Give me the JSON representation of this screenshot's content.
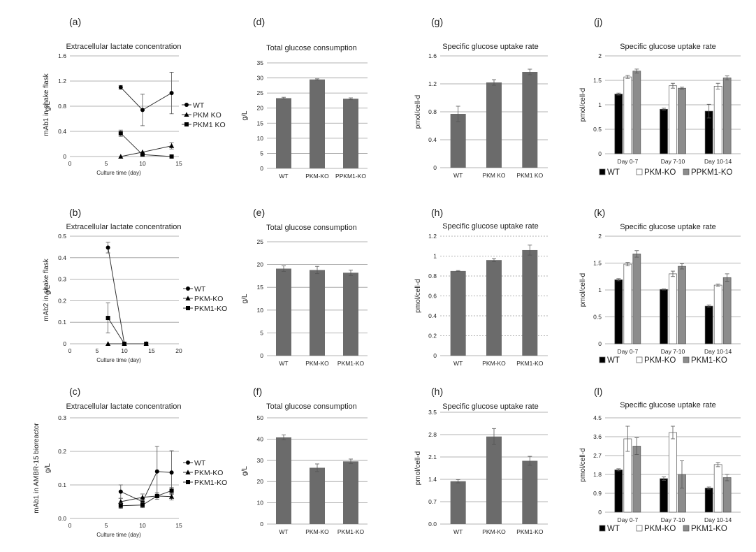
{
  "chart_data": [
    {
      "id": "a",
      "panel_label": "(a)",
      "type": "scatter",
      "row_label": "mAb1 in shake flask",
      "title": "Extracellular lactate concentration",
      "xlabel": "Culture time (day)",
      "ylabel": "g/L",
      "xlim": [
        0,
        15
      ],
      "xticks": [
        "0",
        "5",
        "10",
        "15"
      ],
      "ylim": [
        0,
        1.6
      ],
      "yticks": [
        "0",
        "0.4",
        "0.8",
        "1.2",
        "1.6"
      ],
      "grid": true,
      "legend_position": "right",
      "series": [
        {
          "name": "WT",
          "marker": "circle",
          "x": [
            7,
            10,
            14
          ],
          "y": [
            1.1,
            0.74,
            1.01
          ],
          "err": [
            0.03,
            0.25,
            0.33
          ]
        },
        {
          "name": "PKM KO",
          "marker": "triangle",
          "x": [
            7,
            10,
            14
          ],
          "y": [
            0.0,
            0.07,
            0.17
          ],
          "err": [
            0,
            0,
            0.05
          ]
        },
        {
          "name": "PKM1 KO",
          "marker": "square",
          "x": [
            7,
            10,
            14
          ],
          "y": [
            0.37,
            0.03,
            0.0
          ],
          "err": [
            0.05,
            0,
            0
          ]
        }
      ]
    },
    {
      "id": "b",
      "panel_label": "(b)",
      "type": "scatter",
      "row_label": "mAb2 in shake flask",
      "title": "Extracellular lactate concentration",
      "xlabel": "Culture time (day)",
      "ylabel": "g/L",
      "xlim": [
        0,
        20
      ],
      "xticks": [
        "0",
        "5",
        "10",
        "15",
        "20"
      ],
      "ylim": [
        0,
        0.5
      ],
      "yticks": [
        "0",
        "0.1",
        "0.2",
        "0.3",
        "0.4",
        "0.5"
      ],
      "grid": true,
      "legend_position": "right",
      "series": [
        {
          "name": "WT",
          "marker": "circle",
          "x": [
            7,
            10
          ],
          "y": [
            0.447,
            0.0
          ],
          "err": [
            0.025,
            0
          ]
        },
        {
          "name": "PKM-KO",
          "marker": "triangle",
          "x": [
            7,
            10,
            14
          ],
          "y": [
            0.0,
            0.0,
            0.0
          ],
          "err": [
            0,
            0,
            0
          ]
        },
        {
          "name": "PKM1-KO",
          "marker": "square",
          "x": [
            7,
            10,
            14
          ],
          "y": [
            0.12,
            0.0,
            0.0
          ],
          "err": [
            0.07,
            0,
            0
          ]
        }
      ]
    },
    {
      "id": "c",
      "panel_label": "(c)",
      "type": "scatter",
      "row_label": "mAb1 in AMBR-15 bioreactor",
      "title": "Extracellular lactate concentration",
      "xlabel": "Culture time (day)",
      "ylabel": "g/L",
      "xlim": [
        0,
        15
      ],
      "xticks": [
        "0",
        "5",
        "10",
        "15"
      ],
      "ylim": [
        0,
        0.3
      ],
      "yticks": [
        "0.0",
        "0.1",
        "0.2",
        "0.3"
      ],
      "grid": true,
      "legend_position": "right",
      "series": [
        {
          "name": "WT",
          "marker": "circle",
          "x": [
            7,
            10,
            12,
            14
          ],
          "y": [
            0.08,
            0.05,
            0.14,
            0.137
          ],
          "err": [
            0.02,
            0.01,
            0.075,
            0.065
          ]
        },
        {
          "name": "PKM-KO",
          "marker": "triangle",
          "x": [
            7,
            10,
            12,
            14
          ],
          "y": [
            0.05,
            0.063,
            0.067,
            0.065
          ],
          "err": [
            0.01,
            0.01,
            0.01,
            0.01
          ]
        },
        {
          "name": "PKM1-KO",
          "marker": "square",
          "x": [
            7,
            10,
            12,
            14
          ],
          "y": [
            0.038,
            0.04,
            0.067,
            0.083
          ],
          "err": [
            0.008,
            0.008,
            0.005,
            0.01
          ]
        }
      ]
    },
    {
      "id": "d",
      "panel_label": "(d)",
      "type": "bar",
      "title": "Total glucose consumption",
      "ylabel": "g/L",
      "categories": [
        "WT",
        "PKM-KO",
        "PPKM1-KO"
      ],
      "values": [
        23.3,
        29.5,
        23.1
      ],
      "err": [
        0.3,
        0.2,
        0.3
      ],
      "ylim": [
        0,
        35
      ],
      "yticks": [
        "0",
        "5",
        "10",
        "15",
        "20",
        "25",
        "30",
        "35"
      ],
      "grid": true,
      "color": "#6b6b6b"
    },
    {
      "id": "e",
      "panel_label": "(e)",
      "type": "bar",
      "title": "Total glucose consumption",
      "ylabel": "g/L",
      "categories": [
        "WT",
        "PKM-KO",
        "PKM1-KO"
      ],
      "values": [
        19.1,
        18.8,
        18.2
      ],
      "err": [
        0.6,
        0.8,
        0.6
      ],
      "ylim": [
        0,
        25
      ],
      "yticks": [
        "0",
        "5",
        "10",
        "15",
        "20",
        "25"
      ],
      "grid": true,
      "color": "#6b6b6b"
    },
    {
      "id": "f",
      "panel_label": "(f)",
      "type": "bar",
      "title": "Total glucose consumption",
      "ylabel": "g/L",
      "categories": [
        "WT",
        "PKM-KO",
        "PKM1-KO"
      ],
      "values": [
        40.8,
        26.5,
        29.5
      ],
      "err": [
        1.2,
        1.8,
        1.1
      ],
      "ylim": [
        0,
        50
      ],
      "yticks": [
        "0",
        "10",
        "20",
        "30",
        "40",
        "50"
      ],
      "grid": true,
      "color": "#6b6b6b"
    },
    {
      "id": "g",
      "panel_label": "(g)",
      "type": "bar",
      "title": "Specific glucose uptake rate",
      "ylabel": "pmol/cell-d",
      "categories": [
        "WT",
        "PKM KO",
        "PKM1 KO"
      ],
      "values": [
        0.77,
        1.22,
        1.37
      ],
      "err": [
        0.11,
        0.04,
        0.04
      ],
      "ylim": [
        0,
        1.6
      ],
      "yticks": [
        "0",
        "0.4",
        "0.8",
        "1.2",
        "1.6"
      ],
      "grid": true,
      "color": "#6b6b6b"
    },
    {
      "id": "h1",
      "panel_label": "(h)",
      "type": "bar",
      "title": "Specific glucose uptake rate",
      "ylabel": "pmol/cell-d",
      "categories": [
        "WT",
        "PKM-KO",
        "PKM1-KO"
      ],
      "values": [
        0.85,
        0.96,
        1.06
      ],
      "err": [
        0.005,
        0.015,
        0.05
      ],
      "ylim": [
        0,
        1.2
      ],
      "yticks": [
        "0",
        "0.2",
        "0.4",
        "0.6",
        "0.8",
        "1",
        "1.2"
      ],
      "grid": true,
      "grid_style": "dashed",
      "color": "#6b6b6b"
    },
    {
      "id": "h2",
      "panel_label": "(h)",
      "type": "bar",
      "title": "Specific glucose uptake rate",
      "ylabel": "pmol/cell-d",
      "categories": [
        "WT",
        "PKM-KO",
        "PKM1-KO"
      ],
      "values": [
        1.34,
        2.74,
        1.98
      ],
      "err": [
        0.05,
        0.25,
        0.14
      ],
      "ylim": [
        0,
        3.5
      ],
      "yticks": [
        "0.0",
        "0.7",
        "1.4",
        "2.1",
        "2.8",
        "3.5"
      ],
      "grid": true,
      "color": "#6b6b6b"
    },
    {
      "id": "j",
      "panel_label": "(j)",
      "type": "bar",
      "title": "Specific glucose uptake rate",
      "ylabel": "pmol/cell-d",
      "categories": [
        "Day 0-7",
        "Day 7-10",
        "Day 10-14"
      ],
      "ylim": [
        0,
        2
      ],
      "yticks": [
        "0",
        "0.5",
        "1",
        "1.5",
        "2"
      ],
      "grid": true,
      "legend_position": "bottom",
      "series": [
        {
          "name": "WT",
          "color": "#000000",
          "values": [
            1.22,
            0.91,
            0.87
          ],
          "err": [
            0.02,
            0.02,
            0.14
          ]
        },
        {
          "name": "PKM-KO",
          "color": "#ffffff",
          "values": [
            1.57,
            1.39,
            1.38
          ],
          "err": [
            0.03,
            0.05,
            0.06
          ]
        },
        {
          "name": "PPKM1-KO",
          "color": "#8c8c8c",
          "values": [
            1.69,
            1.34,
            1.55
          ],
          "err": [
            0.04,
            0.02,
            0.04
          ]
        }
      ]
    },
    {
      "id": "k",
      "panel_label": "(k)",
      "type": "bar",
      "title": "Specific glucose uptake rate",
      "ylabel": "pmol/cell-d",
      "categories": [
        "Day 0-7",
        "Day 7-10",
        "Day 10-14"
      ],
      "ylim": [
        0,
        2
      ],
      "yticks": [
        "0",
        "0.5",
        "1",
        "1.5",
        "2"
      ],
      "grid": true,
      "legend_position": "bottom",
      "series": [
        {
          "name": "WT",
          "color": "#000000",
          "values": [
            1.19,
            1.01,
            0.7
          ],
          "err": [
            0.02,
            0.01,
            0.02
          ]
        },
        {
          "name": "PKM-KO",
          "color": "#ffffff",
          "values": [
            1.48,
            1.3,
            1.09
          ],
          "err": [
            0.03,
            0.05,
            0.02
          ]
        },
        {
          "name": "PKM1-KO",
          "color": "#8c8c8c",
          "values": [
            1.67,
            1.44,
            1.23
          ],
          "err": [
            0.06,
            0.05,
            0.07
          ]
        }
      ]
    },
    {
      "id": "l",
      "panel_label": "(l)",
      "type": "bar",
      "title": "Specific glucose uptake rate",
      "ylabel": "pmol/cell-d",
      "categories": [
        "Day 0-7",
        "Day 7-10",
        "Day 10-14"
      ],
      "ylim": [
        0,
        4.5
      ],
      "yticks": [
        "0",
        "0.9",
        "1.8",
        "2.7",
        "3.6",
        "4.5"
      ],
      "grid": true,
      "legend_position": "bottom",
      "series": [
        {
          "name": "WT",
          "color": "#000000",
          "values": [
            2.02,
            1.6,
            1.15
          ],
          "err": [
            0.05,
            0.08,
            0.05
          ]
        },
        {
          "name": "PKM-KO",
          "color": "#ffffff",
          "values": [
            3.5,
            3.8,
            2.27
          ],
          "err": [
            0.6,
            0.3,
            0.1
          ]
        },
        {
          "name": "PKM1-KO",
          "color": "#8c8c8c",
          "values": [
            3.15,
            1.8,
            1.65
          ],
          "err": [
            0.4,
            0.65,
            0.15
          ]
        }
      ]
    }
  ]
}
